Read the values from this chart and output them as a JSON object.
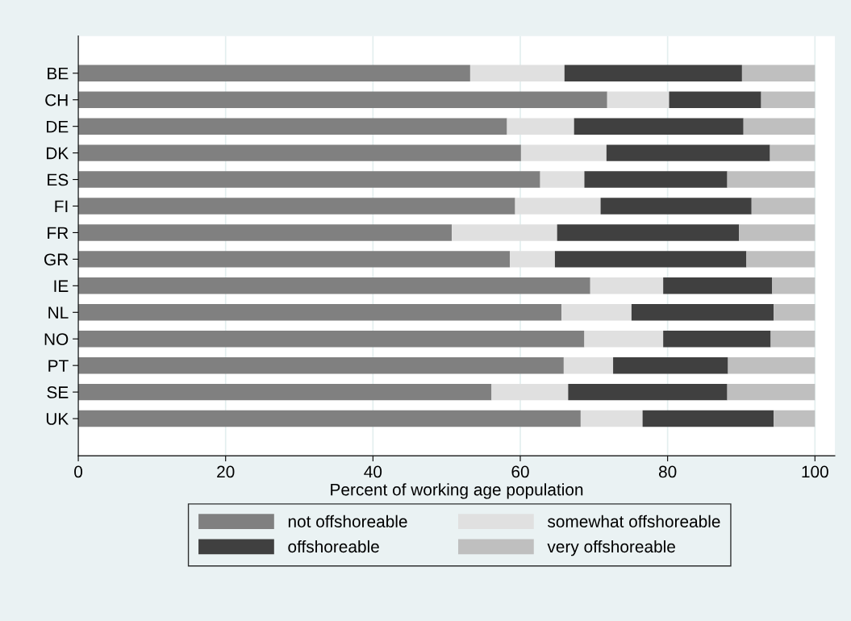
{
  "chart_data": {
    "type": "bar",
    "orientation": "horizontal",
    "stacked": true,
    "xlabel": "Percent of working age population",
    "categories": [
      "BE",
      "CH",
      "DE",
      "DK",
      "ES",
      "FI",
      "FR",
      "GR",
      "IE",
      "NL",
      "NO",
      "PT",
      "SE",
      "UK"
    ],
    "series": [
      {
        "name": "not offshoreable",
        "color": "#808080",
        "values": [
          53.2,
          71.8,
          58.2,
          60.1,
          62.7,
          59.3,
          50.7,
          58.6,
          69.5,
          65.6,
          68.7,
          65.9,
          56.1,
          68.2
        ]
      },
      {
        "name": "somewhat offshoreable",
        "color": "#e0e0e0",
        "values": [
          12.8,
          8.4,
          9.1,
          11.6,
          6.0,
          11.6,
          14.3,
          6.1,
          9.9,
          9.5,
          10.7,
          6.7,
          10.4,
          8.4
        ]
      },
      {
        "name": "offshoreable",
        "color": "#404040",
        "values": [
          24.1,
          12.5,
          23.0,
          22.2,
          19.4,
          20.5,
          24.7,
          26.0,
          14.8,
          19.3,
          14.6,
          15.6,
          21.6,
          17.8
        ]
      },
      {
        "name": "very offshoreable",
        "color": "#bfbfbf",
        "values": [
          9.9,
          7.3,
          9.7,
          6.1,
          11.9,
          8.6,
          10.3,
          9.3,
          5.8,
          5.6,
          6.0,
          11.8,
          11.9,
          5.6
        ]
      }
    ],
    "xlim": [
      0,
      102.7
    ],
    "xticks": [
      0,
      20,
      40,
      60,
      80,
      100
    ],
    "grid": "x",
    "legend": "bottom"
  }
}
